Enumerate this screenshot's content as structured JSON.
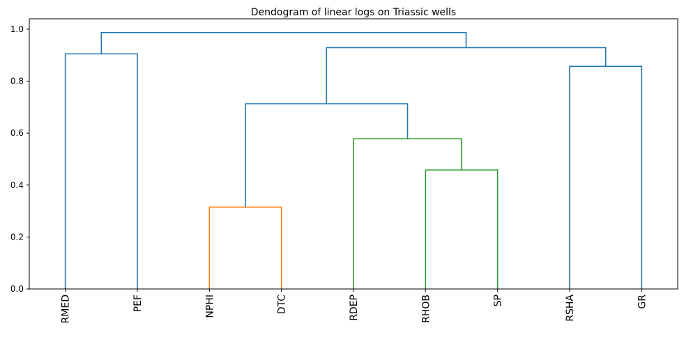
{
  "chart_data": {
    "type": "dendrogram",
    "title": "Dendogram of linear logs on Triassic wells",
    "xlabel": "",
    "ylabel": "",
    "ylim": [
      0,
      1.04
    ],
    "yticks": [
      "0.0",
      "0.2",
      "0.4",
      "0.6",
      "0.8",
      "1.0"
    ],
    "leaves": [
      "RMED",
      "PEF",
      "NPHI",
      "DTC",
      "RDEP",
      "RHOB",
      "SP",
      "RSHA",
      "GR"
    ],
    "merges": [
      {
        "id": "m_npdt",
        "left": "NPHI",
        "right": "DTC",
        "height": 0.315,
        "color": "#ff7f0e"
      },
      {
        "id": "m_rhsp",
        "left": "RHOB",
        "right": "SP",
        "height": 0.458,
        "color": "#2ca02c"
      },
      {
        "id": "m_rdep",
        "left": "RDEP",
        "right": "m_rhsp",
        "height": 0.578,
        "color": "#2ca02c"
      },
      {
        "id": "m_mid",
        "left": "m_npdt",
        "right": "m_rdep",
        "height": 0.713,
        "color": "#1f77b4"
      },
      {
        "id": "m_gr",
        "left": "RSHA",
        "right": "GR",
        "height": 0.857,
        "color": "#1f77b4"
      },
      {
        "id": "m_rmpef",
        "left": "RMED",
        "right": "PEF",
        "height": 0.905,
        "color": "#1f77b4"
      },
      {
        "id": "m_right",
        "left": "m_mid",
        "right": "m_gr",
        "height": 0.929,
        "color": "#1f77b4"
      },
      {
        "id": "m_root",
        "left": "m_rmpef",
        "right": "m_right",
        "height": 0.987,
        "color": "#1f77b4"
      }
    ],
    "grid": false,
    "legend": "none"
  }
}
